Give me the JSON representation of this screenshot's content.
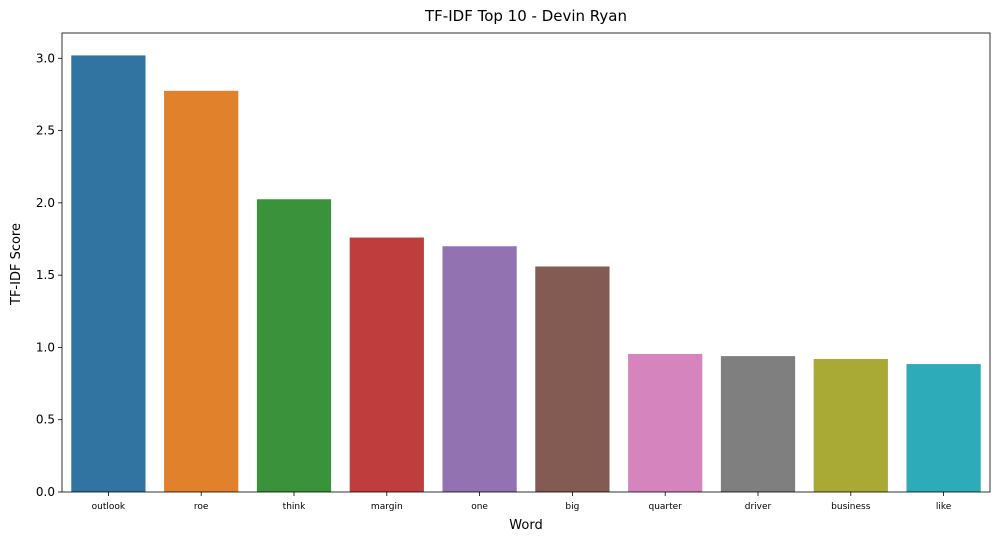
{
  "chart_data": {
    "type": "bar",
    "title": "TF-IDF Top 10 - Devin Ryan",
    "xlabel": "Word",
    "ylabel": "TF-IDF Score",
    "categories": [
      "outlook",
      "roe",
      "think",
      "margin",
      "one",
      "big",
      "quarter",
      "driver",
      "business",
      "like"
    ],
    "values": [
      3.02,
      2.775,
      2.025,
      1.76,
      1.7,
      1.56,
      0.955,
      0.94,
      0.92,
      0.885
    ],
    "colors": [
      "#3274a1",
      "#e1812c",
      "#3a923a",
      "#c03d3e",
      "#9372b2",
      "#845b53",
      "#d684bd",
      "#7f7f7f",
      "#a9aa35",
      "#2eabb8"
    ],
    "ylim": [
      0,
      3.175
    ],
    "yticks": [
      0.0,
      0.5,
      1.0,
      1.5,
      2.0,
      2.5,
      3.0
    ],
    "ytick_labels": [
      "0.0",
      "0.5",
      "1.0",
      "1.5",
      "2.0",
      "2.5",
      "3.0"
    ],
    "grid": false,
    "legend": "none"
  }
}
